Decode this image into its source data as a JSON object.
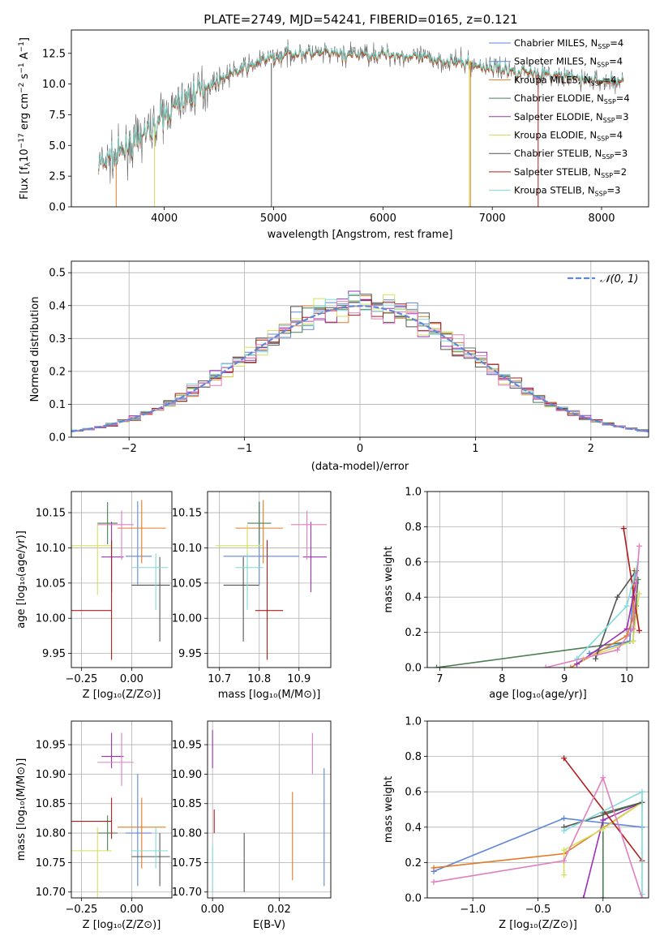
{
  "figure_title": "PLATE=2749, MJD=54241, FIBERID=0165, z=0.121",
  "colors": {
    "Chabrier MILES": "#5f87d8",
    "Salpeter MILES": "#5f87d8",
    "Kroupa MILES": "#e07b28",
    "Chabrier ELODIE": "#4c7f52",
    "Salpeter ELODIE": "#9b32b4",
    "Kroupa ELODIE": "#d4e05c",
    "Chabrier STELIB": "#555555",
    "Salpeter STELIB": "#b01c1c",
    "Kroupa STELIB": "#7fdada",
    "pink": "#e07fbf",
    "normal": "#5f87d8"
  },
  "chart_data": [
    {
      "id": "spectrum",
      "type": "line",
      "title": "PLATE=2749, MJD=54241, FIBERID=0165, z=0.121",
      "xlabel": "wavelength [Angstrom, rest frame]",
      "ylabel": "Flux [f_λ 10^-17 erg cm^-2 s^-1 A^-1]",
      "xlim": [
        3150,
        8430
      ],
      "ylim": [
        0,
        14.4
      ],
      "xticks": [
        4000,
        5000,
        6000,
        7000,
        8000
      ],
      "yticks": [
        0.0,
        2.5,
        5.0,
        7.5,
        10.0,
        12.5
      ],
      "grid": false,
      "legend_position": "upper right",
      "legend": [
        {
          "label": "Chabrier MILES, N_SSP=4",
          "text": "Chabrier MILES, N",
          "sub": "SSP",
          "suffix": "=4",
          "color": "Chabrier MILES"
        },
        {
          "label": "Salpeter MILES, N_SSP=4",
          "text": "Salpeter MILES, N",
          "sub": "SSP",
          "suffix": "=4",
          "color": "Salpeter MILES"
        },
        {
          "label": "Kroupa MILES, N_SSP=4",
          "text": "Kroupa MILES, N",
          "sub": "SSP",
          "suffix": "=4",
          "color": "Kroupa MILES"
        },
        {
          "label": "Chabrier ELODIE, N_SSP=4",
          "text": "Chabrier ELODIE, N",
          "sub": "SSP",
          "suffix": "=4",
          "color": "Chabrier ELODIE"
        },
        {
          "label": "Salpeter ELODIE, N_SSP=3",
          "text": "Salpeter ELODIE, N",
          "sub": "SSP",
          "suffix": "=3",
          "color": "Salpeter ELODIE"
        },
        {
          "label": "Kroupa ELODIE, N_SSP=4",
          "text": "Kroupa ELODIE, N",
          "sub": "SSP",
          "suffix": "=4",
          "color": "Kroupa ELODIE"
        },
        {
          "label": "Chabrier STELIB, N_SSP=3",
          "text": "Chabrier STELIB, N",
          "sub": "SSP",
          "suffix": "=3",
          "color": "Chabrier STELIB"
        },
        {
          "label": "Salpeter STELIB, N_SSP=2",
          "text": "Salpeter STELIB, N",
          "sub": "SSP",
          "suffix": "=2",
          "color": "Salpeter STELIB"
        },
        {
          "label": "Kroupa STELIB, N_SSP=3",
          "text": "Kroupa STELIB, N",
          "sub": "SSP",
          "suffix": "=3",
          "color": "Kroupa STELIB"
        }
      ],
      "continuum": {
        "x": [
          3400,
          3550,
          3700,
          3850,
          4000,
          4150,
          4300,
          4450,
          4600,
          4750,
          4900,
          5050,
          5200,
          5350,
          5500,
          5650,
          5800,
          5950,
          6100,
          6250,
          6400,
          6550,
          6700,
          6850,
          7000,
          7150,
          7300,
          7450,
          7600,
          7750,
          7900,
          8050,
          8200
        ],
        "y": [
          3.5,
          4.0,
          5.0,
          6.2,
          7.5,
          8.6,
          9.4,
          10.1,
          10.8,
          11.4,
          11.9,
          12.3,
          12.5,
          12.5,
          12.4,
          12.4,
          12.5,
          12.4,
          12.4,
          12.2,
          12.1,
          11.9,
          11.8,
          11.5,
          11.4,
          11.1,
          11.0,
          10.8,
          10.6,
          10.5,
          10.3,
          10.2,
          10.1
        ]
      },
      "drops": [
        {
          "series": "Kroupa MILES",
          "x": 3560,
          "from": 3.5
        },
        {
          "series": "Kroupa ELODIE",
          "x": 3910,
          "from": 6.5
        },
        {
          "series": "Chabrier STELIB",
          "x": 4980,
          "from": 11.7
        },
        {
          "series": "Kroupa ELODIE",
          "x": 6790,
          "from": 11.9
        },
        {
          "series": "Kroupa MILES",
          "x": 6800,
          "from": 11.9
        },
        {
          "series": "Salpeter STELIB",
          "x": 7420,
          "from": 10.8
        }
      ]
    },
    {
      "id": "residuals",
      "type": "line",
      "xlabel": "(data-model)/error",
      "ylabel": "Normed distribution",
      "xlim": [
        -2.5,
        2.5
      ],
      "ylim": [
        0,
        0.535
      ],
      "xticks": [
        -2,
        -1,
        0,
        1,
        2
      ],
      "yticks": [
        0.0,
        0.1,
        0.2,
        0.3,
        0.4,
        0.5
      ],
      "grid": true,
      "legend_position": "upper right",
      "legend": [
        {
          "label": "N(0,1)",
          "text": "𝒩(0, 1)",
          "color": "normal",
          "dashed": true
        }
      ],
      "bin_width": 0.1
    },
    {
      "id": "age_vs_Z",
      "type": "scatter",
      "xlabel": "Z [log10(Z/Z⊙)]",
      "ylabel": "age  [log10(age/yr)]",
      "xlim": [
        -0.3,
        0.2
      ],
      "ylim": [
        9.93,
        10.18
      ],
      "xticks": [
        -0.25,
        0.0
      ],
      "yticks": [
        9.95,
        10.0,
        10.05,
        10.1,
        10.15
      ],
      "grid": true,
      "points": [
        {
          "series": "Chabrier MILES",
          "x": 0.03,
          "y": 10.088,
          "xerr": [
            0.06,
            0.07
          ],
          "yerr": [
            0.04,
            0.078
          ]
        },
        {
          "series": "Kroupa MILES",
          "x": 0.05,
          "y": 10.128,
          "xerr": [
            0.12,
            0.12
          ],
          "yerr": [
            0.05,
            0.04
          ]
        },
        {
          "series": "Chabrier ELODIE",
          "x": -0.12,
          "y": 10.135,
          "xerr": [
            0.05,
            0.05
          ],
          "yerr": [
            0.03,
            0.03
          ]
        },
        {
          "series": "Salpeter ELODIE",
          "x": -0.1,
          "y": 10.087,
          "xerr": [
            0.05,
            0.06
          ],
          "yerr": [
            0.05,
            0.05
          ]
        },
        {
          "series": "Kroupa ELODIE",
          "x": -0.17,
          "y": 10.103,
          "xerr": [
            0.13,
            0.07
          ],
          "yerr": [
            0.07,
            0.03
          ]
        },
        {
          "series": "Chabrier STELIB",
          "x": 0.14,
          "y": 10.047,
          "xerr": [
            0.14,
            0.05
          ],
          "yerr": [
            0.08,
            0.04
          ]
        },
        {
          "series": "Salpeter STELIB",
          "x": -0.1,
          "y": 10.011,
          "xerr": [
            0.22,
            0.0
          ],
          "yerr": [
            0.07,
            0.1
          ]
        },
        {
          "series": "Kroupa STELIB",
          "x": 0.12,
          "y": 10.072,
          "xerr": [
            0.12,
            0.06
          ],
          "yerr": [
            0.06,
            0.02
          ]
        },
        {
          "series": "pink",
          "x": -0.05,
          "y": 10.133,
          "xerr": [
            0.12,
            0.06
          ],
          "yerr": [
            0.05,
            0.02
          ]
        }
      ]
    },
    {
      "id": "age_vs_mass",
      "type": "scatter",
      "xlabel": "mass [log10(M/M⊙)]",
      "ylabel": "",
      "xlim": [
        10.67,
        10.98
      ],
      "ylim": [
        9.93,
        10.18
      ],
      "xticks": [
        10.7,
        10.8,
        10.9
      ],
      "yticks": [
        9.95,
        10.0,
        10.05,
        10.1,
        10.15
      ],
      "grid": true,
      "points": [
        {
          "series": "Chabrier MILES",
          "x": 10.8,
          "y": 10.088,
          "xerr": [
            0.09,
            0.1
          ],
          "yerr": [
            0.04,
            0.078
          ]
        },
        {
          "series": "Kroupa MILES",
          "x": 10.81,
          "y": 10.128,
          "xerr": [
            0.07,
            0.05
          ],
          "yerr": [
            0.05,
            0.04
          ]
        },
        {
          "series": "Chabrier ELODIE",
          "x": 10.8,
          "y": 10.135,
          "xerr": [
            0.03,
            0.03
          ],
          "yerr": [
            0.03,
            0.03
          ]
        },
        {
          "series": "Salpeter ELODIE",
          "x": 10.93,
          "y": 10.087,
          "xerr": [
            0.02,
            0.04
          ],
          "yerr": [
            0.05,
            0.05
          ]
        },
        {
          "series": "Kroupa ELODIE",
          "x": 10.77,
          "y": 10.103,
          "xerr": [
            0.08,
            0.04
          ],
          "yerr": [
            0.07,
            0.03
          ]
        },
        {
          "series": "Chabrier STELIB",
          "x": 10.76,
          "y": 10.047,
          "xerr": [
            0.05,
            0.04
          ],
          "yerr": [
            0.08,
            0.04
          ]
        },
        {
          "series": "Salpeter STELIB",
          "x": 10.82,
          "y": 10.011,
          "xerr": [
            0.03,
            0.04
          ],
          "yerr": [
            0.07,
            0.1
          ]
        },
        {
          "series": "Kroupa STELIB",
          "x": 10.77,
          "y": 10.072,
          "xerr": [
            0.03,
            0.04
          ],
          "yerr": [
            0.06,
            0.02
          ]
        },
        {
          "series": "pink",
          "x": 10.92,
          "y": 10.133,
          "xerr": [
            0.04,
            0.05
          ],
          "yerr": [
            0.05,
            0.02
          ]
        }
      ]
    },
    {
      "id": "weight_vs_age",
      "type": "line",
      "xlabel": "age  [log10(age/yr)]",
      "ylabel": "mass weight",
      "xlim": [
        6.8,
        10.35
      ],
      "ylim": [
        0,
        1.0
      ],
      "xticks": [
        7,
        8,
        9,
        10
      ],
      "yticks": [
        0.0,
        0.2,
        0.4,
        0.6,
        0.8,
        1.0
      ],
      "grid": true,
      "series": [
        {
          "name": "Chabrier ELODIE",
          "x": [
            6.95,
            10.1,
            10.15,
            10.18
          ],
          "y": [
            0.0,
            0.15,
            0.35,
            0.5
          ]
        },
        {
          "name": "Chabrier MILES",
          "x": [
            9.4,
            10.05,
            10.1,
            10.18
          ],
          "y": [
            0.08,
            0.15,
            0.45,
            0.6
          ]
        },
        {
          "name": "Kroupa MILES",
          "x": [
            9.1,
            10.0,
            10.1,
            10.12
          ],
          "y": [
            0.0,
            0.18,
            0.28,
            0.55
          ]
        },
        {
          "name": "Salpeter ELODIE",
          "x": [
            9.2,
            10.0,
            10.1,
            10.15
          ],
          "y": [
            0.02,
            0.22,
            0.4,
            0.48
          ]
        },
        {
          "name": "Kroupa ELODIE",
          "x": [
            9.3,
            10.1,
            10.15,
            10.2
          ],
          "y": [
            0.05,
            0.15,
            0.3,
            0.42
          ]
        },
        {
          "name": "Chabrier STELIB",
          "x": [
            9.5,
            9.85,
            10.15
          ],
          "y": [
            0.05,
            0.4,
            0.55
          ]
        },
        {
          "name": "Salpeter STELIB",
          "x": [
            9.95,
            10.2
          ],
          "y": [
            0.79,
            0.21
          ]
        },
        {
          "name": "Kroupa STELIB",
          "x": [
            9.2,
            10.0,
            10.18
          ],
          "y": [
            0.05,
            0.35,
            0.6
          ]
        },
        {
          "name": "pink",
          "x": [
            8.7,
            9.85,
            10.1,
            10.2
          ],
          "y": [
            0.0,
            0.1,
            0.22,
            0.69
          ]
        }
      ]
    },
    {
      "id": "mass_vs_Z",
      "type": "scatter",
      "xlabel": "Z [log10(Z/Z⊙)]",
      "ylabel": "mass [log10(M/M⊙)]",
      "xlim": [
        -0.3,
        0.2
      ],
      "ylim": [
        10.69,
        10.99
      ],
      "xticks": [
        -0.25,
        0.0
      ],
      "yticks": [
        10.7,
        10.75,
        10.8,
        10.85,
        10.9,
        10.95
      ],
      "grid": true,
      "points": [
        {
          "series": "Chabrier MILES",
          "x": 0.03,
          "y": 10.8,
          "xerr": [
            0.06,
            0.07
          ],
          "yerr": [
            0.09,
            0.1
          ]
        },
        {
          "series": "Kroupa MILES",
          "x": 0.05,
          "y": 10.81,
          "xerr": [
            0.12,
            0.12
          ],
          "yerr": [
            0.07,
            0.05
          ]
        },
        {
          "series": "Chabrier ELODIE",
          "x": -0.12,
          "y": 10.8,
          "xerr": [
            0.05,
            0.05
          ],
          "yerr": [
            0.03,
            0.03
          ]
        },
        {
          "series": "Salpeter ELODIE",
          "x": -0.1,
          "y": 10.93,
          "xerr": [
            0.05,
            0.06
          ],
          "yerr": [
            0.02,
            0.04
          ]
        },
        {
          "series": "Kroupa ELODIE",
          "x": -0.17,
          "y": 10.77,
          "xerr": [
            0.13,
            0.07
          ],
          "yerr": [
            0.08,
            0.04
          ]
        },
        {
          "series": "Chabrier STELIB",
          "x": 0.14,
          "y": 10.76,
          "xerr": [
            0.14,
            0.05
          ],
          "yerr": [
            0.05,
            0.04
          ]
        },
        {
          "series": "Salpeter STELIB",
          "x": -0.1,
          "y": 10.82,
          "xerr": [
            0.22,
            0.0
          ],
          "yerr": [
            0.03,
            0.04
          ]
        },
        {
          "series": "Kroupa STELIB",
          "x": 0.12,
          "y": 10.77,
          "xerr": [
            0.12,
            0.06
          ],
          "yerr": [
            0.03,
            0.04
          ]
        },
        {
          "series": "pink",
          "x": -0.05,
          "y": 10.92,
          "xerr": [
            0.12,
            0.06
          ],
          "yerr": [
            0.04,
            0.05
          ]
        }
      ]
    },
    {
      "id": "mass_vs_EBV",
      "type": "scatter",
      "xlabel": "E(B-V)",
      "ylabel": "",
      "xlim": [
        -0.0015,
        0.0355
      ],
      "ylim": [
        10.69,
        10.99
      ],
      "xticks": [
        0.0,
        0.02
      ],
      "yticks": [
        10.7,
        10.75,
        10.8,
        10.85,
        10.9,
        10.95
      ],
      "grid": true,
      "points": [
        {
          "series": "Chabrier MILES",
          "x": 0.0335,
          "y": 10.81,
          "yerr": [
            0.1,
            0.1
          ]
        },
        {
          "series": "Kroupa MILES",
          "x": 0.024,
          "y": 10.8,
          "yerr": [
            0.08,
            0.07
          ]
        },
        {
          "series": "Salpeter ELODIE",
          "x": 0.0,
          "y": 10.93,
          "yerr": [
            0.02,
            0.045
          ]
        },
        {
          "series": "Chabrier STELIB",
          "x": 0.0095,
          "y": 10.76,
          "yerr": [
            0.06,
            0.04
          ]
        },
        {
          "series": "Salpeter STELIB",
          "x": 0.0005,
          "y": 10.82,
          "yerr": [
            0.02,
            0.02
          ]
        },
        {
          "series": "Kroupa STELIB",
          "x": 0.0,
          "y": 10.75,
          "yerr": [
            0.05,
            0.03
          ]
        },
        {
          "series": "pink",
          "x": 0.03,
          "y": 10.93,
          "yerr": [
            0.03,
            0.04
          ]
        }
      ]
    },
    {
      "id": "weight_vs_Z",
      "type": "line",
      "xlabel": "Z [log10(Z/Z⊙)]",
      "ylabel": "mass weight",
      "xlim": [
        -1.35,
        0.35
      ],
      "ylim": [
        0,
        1.0
      ],
      "xticks": [
        -1.0,
        -0.5,
        0.0
      ],
      "yticks": [
        0.0,
        0.2,
        0.4,
        0.6,
        0.8,
        1.0
      ],
      "grid": true,
      "series": [
        {
          "name": "Chabrier MILES",
          "x": [
            -1.3,
            -0.3,
            0.3
          ],
          "y": [
            0.15,
            0.45,
            0.4
          ]
        },
        {
          "name": "Kroupa MILES",
          "x": [
            -1.3,
            -0.3,
            0.3
          ],
          "y": [
            0.17,
            0.25,
            0.54
          ]
        },
        {
          "name": "Chabrier ELODIE",
          "x": [
            0.0,
            0.0,
            0.3
          ],
          "y": [
            0.0,
            0.48,
            0.54
          ]
        },
        {
          "name": "Salpeter ELODIE",
          "x": [
            -0.15,
            0.0,
            0.3
          ],
          "y": [
            0.0,
            0.44,
            0.54
          ]
        },
        {
          "name": "Kroupa ELODIE",
          "x": [
            -0.3,
            -0.3,
            0.0,
            0.3
          ],
          "y": [
            0.13,
            0.27,
            0.39,
            0.54
          ]
        },
        {
          "name": "Chabrier STELIB",
          "x": [
            -0.3,
            0.3
          ],
          "y": [
            0.4,
            0.54
          ]
        },
        {
          "name": "Salpeter STELIB",
          "x": [
            -0.3,
            0.3
          ],
          "y": [
            0.79,
            0.21
          ]
        },
        {
          "name": "Kroupa STELIB",
          "x": [
            -0.3,
            0.3,
            0.3
          ],
          "y": [
            0.38,
            0.6,
            0.02
          ]
        },
        {
          "name": "pink",
          "x": [
            -1.3,
            -0.3,
            0.0,
            0.3
          ],
          "y": [
            0.09,
            0.21,
            0.68,
            0.0
          ]
        }
      ]
    }
  ]
}
